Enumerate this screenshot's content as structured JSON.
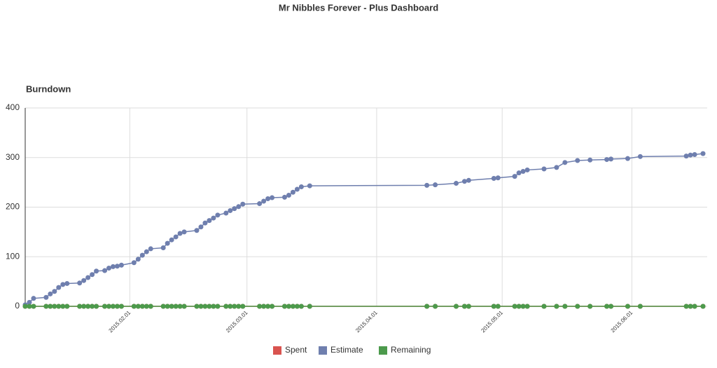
{
  "page_title": "Mr Nibbles Forever - Plus Dashboard",
  "chart_data": {
    "type": "line",
    "title": "Burndown",
    "x": [
      "2015-01-07",
      "2015-01-08",
      "2015-01-09",
      "2015-01-12",
      "2015-01-13",
      "2015-01-14",
      "2015-01-15",
      "2015-01-16",
      "2015-01-17",
      "2015-01-20",
      "2015-01-21",
      "2015-01-22",
      "2015-01-23",
      "2015-01-24",
      "2015-01-26",
      "2015-01-27",
      "2015-01-28",
      "2015-01-29",
      "2015-01-30",
      "2015-02-02",
      "2015-02-03",
      "2015-02-04",
      "2015-02-05",
      "2015-02-06",
      "2015-02-09",
      "2015-02-10",
      "2015-02-11",
      "2015-02-12",
      "2015-02-13",
      "2015-02-14",
      "2015-02-17",
      "2015-02-18",
      "2015-02-19",
      "2015-02-20",
      "2015-02-21",
      "2015-02-22",
      "2015-02-24",
      "2015-02-25",
      "2015-02-26",
      "2015-02-27",
      "2015-02-28",
      "2015-03-04",
      "2015-03-05",
      "2015-03-06",
      "2015-03-07",
      "2015-03-10",
      "2015-03-11",
      "2015-03-12",
      "2015-03-13",
      "2015-03-14",
      "2015-03-16",
      "2015-04-13",
      "2015-04-15",
      "2015-04-20",
      "2015-04-22",
      "2015-04-23",
      "2015-04-29",
      "2015-04-30",
      "2015-05-04",
      "2015-05-05",
      "2015-05-06",
      "2015-05-07",
      "2015-05-11",
      "2015-05-14",
      "2015-05-16",
      "2015-05-19",
      "2015-05-22",
      "2015-05-26",
      "2015-05-27",
      "2015-05-31",
      "2015-06-03",
      "2015-06-14",
      "2015-06-15",
      "2015-06-16",
      "2015-06-18"
    ],
    "series": [
      {
        "name": "Spent",
        "color": "#d9534f",
        "values": [
          0,
          0,
          0,
          0,
          0,
          0,
          0,
          0,
          0,
          0,
          0,
          0,
          0,
          0,
          0,
          0,
          0,
          0,
          0,
          0,
          0,
          0,
          0,
          0,
          0,
          0,
          0,
          0,
          0,
          0,
          0,
          0,
          0,
          0,
          0,
          0,
          0,
          0,
          0,
          0,
          0,
          0,
          0,
          0,
          0,
          0,
          0,
          0,
          0,
          0,
          0,
          0,
          0,
          0,
          0,
          0,
          0,
          0,
          0,
          0,
          0,
          0,
          0,
          0,
          0,
          0,
          0,
          0,
          0,
          0,
          0,
          0,
          0,
          0,
          0
        ]
      },
      {
        "name": "Estimate",
        "color": "#6f7fae",
        "values": [
          3,
          8,
          16,
          18,
          25,
          30,
          38,
          44,
          46,
          47,
          52,
          58,
          64,
          71,
          72,
          77,
          80,
          81,
          83,
          88,
          95,
          103,
          110,
          116,
          118,
          127,
          134,
          140,
          147,
          150,
          153,
          160,
          168,
          173,
          178,
          184,
          188,
          193,
          197,
          201,
          206,
          207,
          212,
          217,
          219,
          220,
          224,
          230,
          236,
          241,
          243,
          244,
          245,
          248,
          252,
          254,
          258,
          259,
          262,
          269,
          272,
          275,
          277,
          280,
          290,
          294,
          295,
          296,
          297,
          298,
          302,
          303,
          305,
          306,
          308
        ]
      },
      {
        "name": "Remaining",
        "color": "#4c9a4c",
        "values": [
          0,
          0,
          0,
          0,
          0,
          0,
          0,
          0,
          0,
          0,
          0,
          0,
          0,
          0,
          0,
          0,
          0,
          0,
          0,
          0,
          0,
          0,
          0,
          0,
          0,
          0,
          0,
          0,
          0,
          0,
          0,
          0,
          0,
          0,
          0,
          0,
          0,
          0,
          0,
          0,
          0,
          0,
          0,
          0,
          0,
          0,
          0,
          0,
          0,
          0,
          0,
          0,
          0,
          0,
          0,
          0,
          0,
          0,
          0,
          0,
          0,
          0,
          0,
          0,
          0,
          0,
          0,
          0,
          0,
          0,
          0,
          0,
          0,
          0,
          0
        ]
      }
    ],
    "xlim": [
      "2015-01-07",
      "2015-06-19"
    ],
    "xticks": [
      {
        "value": "2015-02-01",
        "label": "2015.02.01"
      },
      {
        "value": "2015-03-01",
        "label": "2015.03.01"
      },
      {
        "value": "2015-04-01",
        "label": "2015.04.01"
      },
      {
        "value": "2015-05-01",
        "label": "2015.05.01"
      },
      {
        "value": "2015-06-01",
        "label": "2015.06.01"
      }
    ],
    "ylim": [
      0,
      400
    ],
    "yticks": [
      0,
      100,
      200,
      300,
      400
    ],
    "grid": true,
    "legend": "bottom"
  }
}
